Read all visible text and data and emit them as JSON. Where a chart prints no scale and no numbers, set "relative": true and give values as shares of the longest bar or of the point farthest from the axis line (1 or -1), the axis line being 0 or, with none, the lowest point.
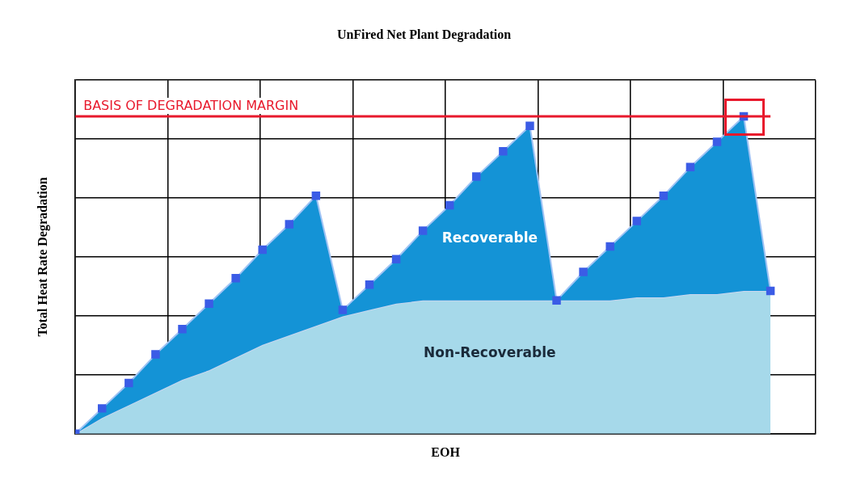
{
  "chart_data": {
    "type": "area",
    "title": "UnFired Net Plant Degradation",
    "xlabel": "EOH",
    "ylabel": "Total Heat Rate Degradation",
    "categories": [
      null,
      null,
      null,
      null,
      null,
      null,
      null,
      null,
      null,
      null,
      null,
      null,
      null,
      null,
      null,
      null,
      null,
      null,
      null,
      null,
      null,
      null,
      null,
      null,
      null,
      null,
      null
    ],
    "relative": true,
    "grid": true,
    "legend": false,
    "tick_labels": false,
    "series": [
      {
        "name": "Recoverable",
        "color": "#1493d6",
        "marker": "square",
        "values": [
          0,
          0.08,
          0.16,
          0.25,
          0.33,
          0.41,
          0.49,
          0.58,
          0.66,
          0.75,
          0.39,
          0.47,
          0.55,
          0.64,
          0.72,
          0.81,
          0.89,
          0.97,
          0.42,
          0.51,
          0.59,
          0.67,
          0.75,
          0.84,
          0.92,
          1,
          0.45
        ]
      },
      {
        "name": "Non-Recoverable",
        "color": "#a6d9ea",
        "marker": "none",
        "values": [
          0,
          0.05,
          0.09,
          0.13,
          0.17,
          0.2,
          0.24,
          0.28,
          0.31,
          0.34,
          0.37,
          0.39,
          0.41,
          0.42,
          0.42,
          0.42,
          0.42,
          0.42,
          0.42,
          0.42,
          0.42,
          0.43,
          0.43,
          0.44,
          0.44,
          0.45,
          0.45
        ]
      }
    ],
    "ref_lines": [
      {
        "axis": "y",
        "value": 1,
        "label": "BASIS OF DEGRADATION MARGIN",
        "color": "#e8192c"
      }
    ]
  }
}
